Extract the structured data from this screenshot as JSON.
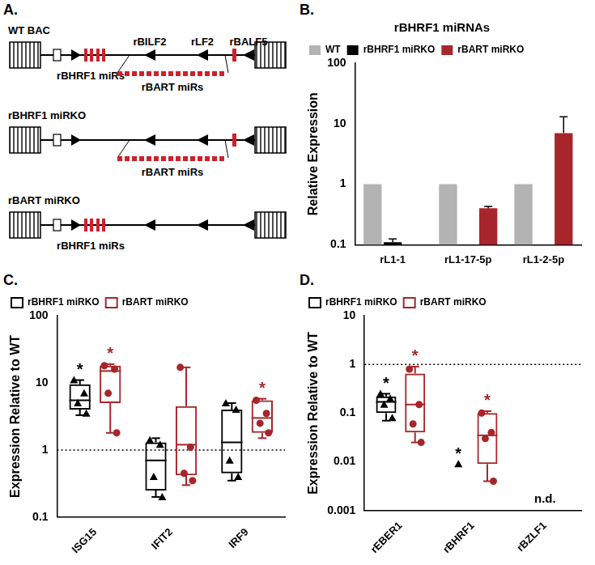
{
  "diagram": {
    "letter": "A.",
    "bhrf1_label": "rBHRF1 miRs",
    "bart_label": "rBART miRs",
    "genes": [
      "rBILF2",
      "rLF2",
      "rBALF5"
    ],
    "constructs": [
      {
        "name": "WT BAC",
        "bhrf1_mirs": true,
        "bart_mirs": true,
        "gene_labels": true
      },
      {
        "name": "rBHRF1 miRKO",
        "bhrf1_mirs": false,
        "bart_mirs": true,
        "gene_labels": false
      },
      {
        "name": "rBART miRKO",
        "bhrf1_mirs": true,
        "bart_mirs": false,
        "gene_labels": false
      }
    ]
  },
  "chart_data": [
    {
      "panel": "B.",
      "type": "bar",
      "title": "rBHRF1 miRNAs",
      "y_label": "Relative Expression",
      "categories": [
        "rL1-1",
        "rL1-17-5p",
        "rL1-2-5p"
      ],
      "series": [
        {
          "name": "WT",
          "color": "#b3b3b3",
          "values": [
            1,
            1,
            1
          ]
        },
        {
          "name": "rBHRF1 miRKO",
          "color": "#000000",
          "values": [
            0.11,
            null,
            null
          ],
          "errors": [
            0.015,
            null,
            null
          ]
        },
        {
          "name": "rBART miRKO",
          "color": "#a6262b",
          "values": [
            null,
            0.4,
            7
          ],
          "errors": [
            null,
            0.03,
            6
          ]
        }
      ],
      "log": "y",
      "ylim": [
        0.1,
        100
      ],
      "yticks": [
        0.1,
        1,
        10,
        100
      ],
      "legend": "top",
      "grid": false
    },
    {
      "panel": "C.",
      "type": "box",
      "y_label": "Expression Relative to WT",
      "categories": [
        "ISG15",
        "IFIT2",
        "IRF9"
      ],
      "series": [
        {
          "name": "rBHRF1 miRKO",
          "color": "#000000",
          "marker": "triangle",
          "boxes": [
            {
              "min": 3.3,
              "q1": 4,
              "median": 5.5,
              "q3": 9.5,
              "max": 11
            },
            {
              "min": 0.2,
              "q1": 0.25,
              "median": 0.7,
              "q3": 1.3,
              "max": 1.5
            },
            {
              "min": 0.35,
              "q1": 0.45,
              "median": 1.3,
              "q3": 4,
              "max": 5
            }
          ],
          "points": [
            [
              11,
              7,
              5,
              3.5
            ],
            [
              1.4,
              1.2,
              0.4,
              0.2
            ],
            [
              5,
              4,
              0.7,
              0.4
            ]
          ],
          "significant": [
            true,
            false,
            false
          ]
        },
        {
          "name": "rBART miRKO",
          "color": "#a6262b",
          "marker": "circle",
          "boxes": [
            {
              "min": 1.8,
              "q1": 5,
              "median": 15,
              "q3": 18,
              "max": 19
            },
            {
              "min": 0.3,
              "q1": 0.42,
              "median": 1.2,
              "q3": 4.5,
              "max": 17
            },
            {
              "min": 1.5,
              "q1": 1.8,
              "median": 3,
              "q3": 5.5,
              "max": 5.8
            }
          ],
          "points": [
            [
              18,
              16,
              7,
              1.8
            ],
            [
              17,
              1.1,
              0.45,
              0.35
            ],
            [
              5.5,
              3.5,
              2.5,
              1.8
            ]
          ],
          "significant": [
            true,
            false,
            true
          ]
        }
      ],
      "significance_label": "*",
      "reference_line": 1,
      "log": "y",
      "ylim": [
        0.1,
        100
      ],
      "yticks": [
        0.1,
        1,
        10,
        100
      ],
      "legend": "top",
      "grid": false
    },
    {
      "panel": "D.",
      "type": "box",
      "y_label": "Expression Relative to WT",
      "categories": [
        "rEBER1",
        "rBHRF1",
        "rBZLF1"
      ],
      "series": [
        {
          "name": "rBHRF1 miRKO",
          "color": "#000000",
          "marker": "triangle",
          "boxes": [
            {
              "min": 0.07,
              "q1": 0.1,
              "median": 0.17,
              "q3": 0.22,
              "max": 0.25
            },
            null,
            null
          ],
          "points": [
            [
              0.25,
              0.2,
              0.15,
              0.08
            ],
            [
              0.009
            ],
            []
          ],
          "significant": [
            true,
            true,
            false
          ]
        },
        {
          "name": "rBART miRKO",
          "color": "#a6262b",
          "marker": "circle",
          "boxes": [
            {
              "min": 0.025,
              "q1": 0.04,
              "median": 0.15,
              "q3": 0.65,
              "max": 0.9
            },
            {
              "min": 0.004,
              "q1": 0.009,
              "median": 0.035,
              "q3": 0.1,
              "max": 0.11
            },
            null
          ],
          "points": [
            [
              0.8,
              0.15,
              0.06,
              0.025
            ],
            [
              0.1,
              0.04,
              0.03,
              0.004
            ],
            []
          ],
          "significant": [
            true,
            true,
            false
          ]
        }
      ],
      "significance_label": "*",
      "reference_line": 1,
      "annotations": [
        {
          "text": "n.d.",
          "category": "rBZLF1"
        }
      ],
      "log": "y",
      "ylim": [
        0.001,
        10
      ],
      "yticks": [
        0.001,
        0.01,
        0.1,
        1,
        10
      ],
      "legend": "top",
      "grid": false
    }
  ]
}
